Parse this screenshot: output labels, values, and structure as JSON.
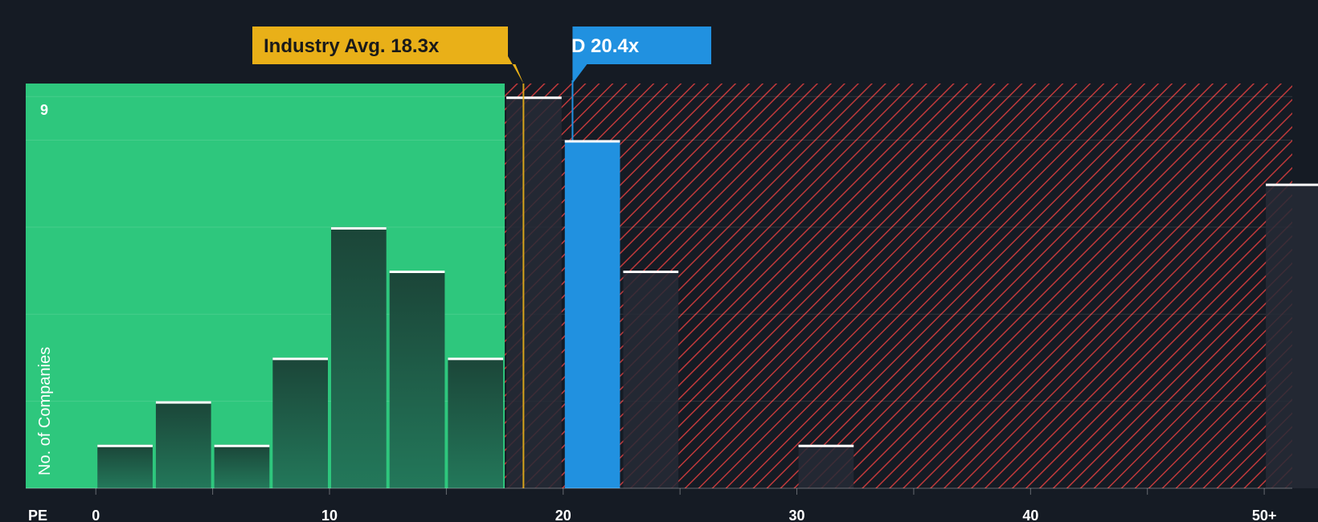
{
  "chart_data": {
    "type": "bar",
    "title": "",
    "xlabel": "PE",
    "ylabel": "No. of Companies",
    "xlim": [
      -3,
      51.2
    ],
    "ylim": [
      0,
      9.3
    ],
    "y_top_label": "9",
    "x_ticks": [
      {
        "value": 0,
        "label": "0"
      },
      {
        "value": 10,
        "label": "10"
      },
      {
        "value": 20,
        "label": "20"
      },
      {
        "value": 30,
        "label": "30"
      },
      {
        "value": 40,
        "label": "40"
      },
      {
        "value": 50,
        "label": "50+"
      }
    ],
    "bin_width": 2.5,
    "bins": [
      {
        "start": 0,
        "count": 1
      },
      {
        "start": 2.5,
        "count": 2
      },
      {
        "start": 5,
        "count": 1
      },
      {
        "start": 7.5,
        "count": 3
      },
      {
        "start": 10,
        "count": 6
      },
      {
        "start": 12.5,
        "count": 5
      },
      {
        "start": 15,
        "count": 3
      },
      {
        "start": 17.5,
        "count": 9
      },
      {
        "start": 20,
        "count": 8,
        "highlight": true
      },
      {
        "start": 22.5,
        "count": 5
      },
      {
        "start": 30,
        "count": 1
      },
      {
        "start": 50,
        "count": 7
      }
    ],
    "fair_zone_max": 17.5,
    "industry_avg": {
      "value": 18.3,
      "label": "Industry Avg. 18.3x"
    },
    "company": {
      "value": 20.4,
      "label": "D 20.4x"
    },
    "colors": {
      "background": "#151b24",
      "green_zone": "#2ec77d",
      "red_hatch": "#c0393b",
      "bar_in_green": "#1d4a3a",
      "bar_in_red": "#262a36",
      "company_bar": "#2191e0",
      "industry_callout": "#e9b018",
      "company_callout": "#2191e0",
      "cap_line": "#ffffff"
    }
  }
}
